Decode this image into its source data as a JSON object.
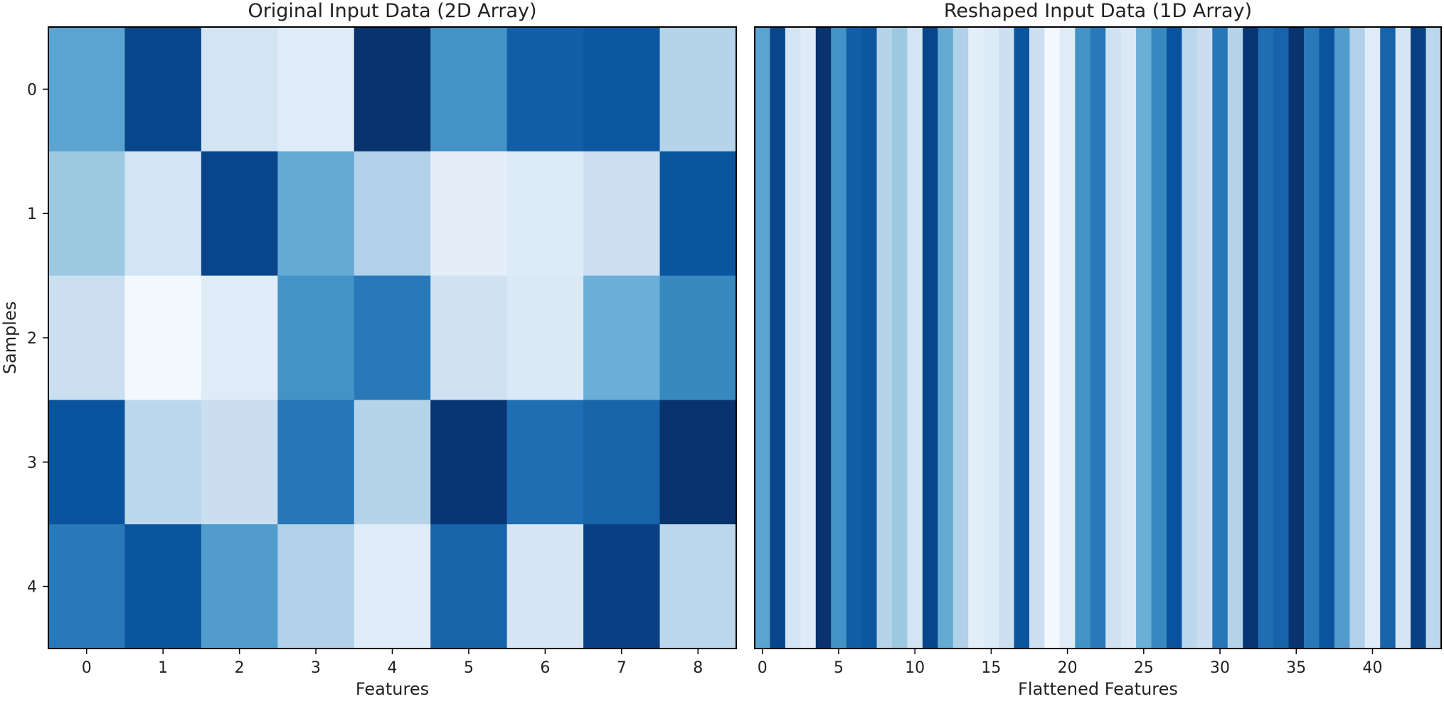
{
  "chart_data": [
    {
      "type": "heatmap",
      "title": "Original Input Data (2D Array)",
      "xlabel": "Features",
      "ylabel": "Samples",
      "x_ticks": [
        "0",
        "1",
        "2",
        "3",
        "4",
        "5",
        "6",
        "7",
        "8"
      ],
      "y_ticks": [
        "0",
        "1",
        "2",
        "3",
        "4"
      ],
      "colormap": "Blues",
      "values": [
        [
          0.55,
          0.92,
          0.18,
          0.12,
          0.99,
          0.62,
          0.82,
          0.85,
          0.3
        ],
        [
          0.38,
          0.18,
          0.92,
          0.52,
          0.32,
          0.1,
          0.13,
          0.22,
          0.86
        ],
        [
          0.22,
          0.02,
          0.12,
          0.62,
          0.72,
          0.2,
          0.14,
          0.5,
          0.66
        ],
        [
          0.87,
          0.28,
          0.23,
          0.73,
          0.3,
          0.98,
          0.76,
          0.8,
          0.99
        ],
        [
          0.72,
          0.86,
          0.58,
          0.32,
          0.12,
          0.8,
          0.17,
          0.94,
          0.28
        ]
      ]
    },
    {
      "type": "heatmap",
      "title": "Reshaped Input Data (1D Array)",
      "xlabel": "Flattened Features",
      "x_ticks": [
        "0",
        "5",
        "10",
        "15",
        "20",
        "25",
        "30",
        "35",
        "40"
      ],
      "x_tick_values": [
        0,
        5,
        10,
        15,
        20,
        25,
        30,
        35,
        40
      ],
      "colormap": "Blues",
      "values": [
        0.55,
        0.92,
        0.18,
        0.12,
        0.99,
        0.62,
        0.82,
        0.85,
        0.3,
        0.38,
        0.18,
        0.92,
        0.52,
        0.32,
        0.1,
        0.13,
        0.22,
        0.86,
        0.22,
        0.02,
        0.12,
        0.62,
        0.72,
        0.2,
        0.14,
        0.5,
        0.66,
        0.87,
        0.28,
        0.23,
        0.73,
        0.3,
        0.98,
        0.76,
        0.8,
        0.99,
        0.72,
        0.86,
        0.58,
        0.32,
        0.12,
        0.8,
        0.17,
        0.94,
        0.28
      ]
    }
  ]
}
